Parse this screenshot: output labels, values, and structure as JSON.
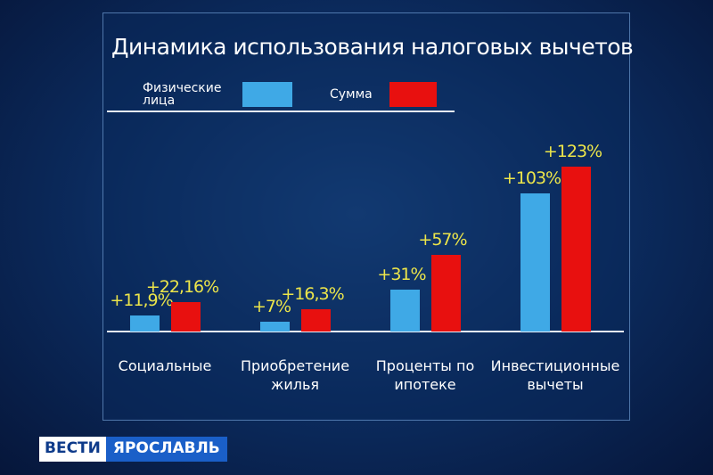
{
  "chart_data": {
    "type": "bar",
    "title": "Динамика использования налоговых вычетов",
    "categories": [
      "Социальные",
      "Приобретение жилья",
      "Проценты по ипотеке",
      "Инвестиционные вычеты"
    ],
    "series": [
      {
        "name": "Физические лица",
        "color": "#3fa9e6",
        "values": [
          11.9,
          7,
          31,
          103
        ],
        "value_labels": [
          "+11,9%",
          "+7%",
          "+31%",
          "+103%"
        ]
      },
      {
        "name": "Сумма",
        "color": "#e8100f",
        "values": [
          22.16,
          16.3,
          57,
          123
        ],
        "value_labels": [
          "+22,16%",
          "+16,3%",
          "+57%",
          "+123%"
        ]
      }
    ]
  },
  "channel_logo": {
    "brand": "ВЕСТИ",
    "region": "ЯРОСЛАВЛЬ"
  }
}
